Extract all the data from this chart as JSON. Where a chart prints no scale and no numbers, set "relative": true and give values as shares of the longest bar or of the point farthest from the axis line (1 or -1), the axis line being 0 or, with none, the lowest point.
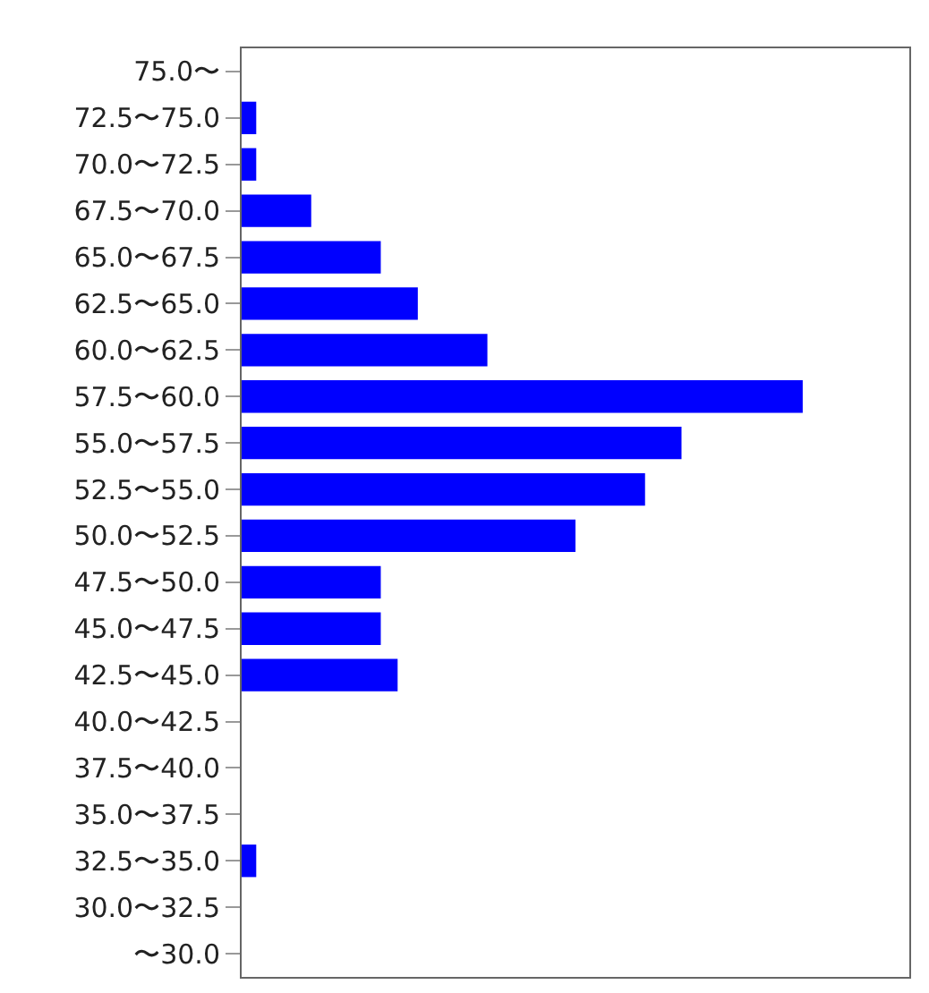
{
  "chart_data": {
    "type": "bar",
    "orientation": "horizontal",
    "relative": true,
    "categories": [
      "75.0〜",
      "72.5〜75.0",
      "70.0〜72.5",
      "67.5〜70.0",
      "65.0〜67.5",
      "62.5〜65.0",
      "60.0〜62.5",
      "57.5〜60.0",
      "55.0〜57.5",
      "52.5〜55.0",
      "50.0〜52.5",
      "47.5〜50.0",
      "45.0〜47.5",
      "42.5〜45.0",
      "40.0〜42.5",
      "37.5〜40.0",
      "35.0〜37.5",
      "32.5〜35.0",
      "30.0〜32.5",
      "〜30.0"
    ],
    "series": [
      {
        "color": "#0000ff",
        "values": [
          0,
          0.026,
          0.026,
          0.124,
          0.248,
          0.314,
          0.438,
          1,
          0.784,
          0.719,
          0.595,
          0.248,
          0.248,
          0.278,
          0,
          0,
          0,
          0.026,
          0,
          0
        ]
      }
    ]
  }
}
